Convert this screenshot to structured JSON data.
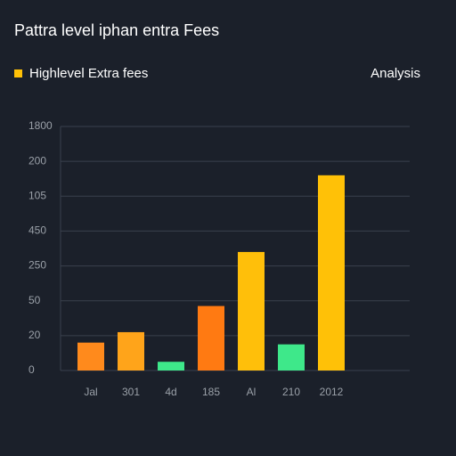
{
  "chart_data": {
    "type": "bar",
    "title": "Pattra level  iphan entra Fees",
    "legend_label": "Highlevel Extra fees",
    "legend_color": "#ffc107",
    "side_label": "Analysis",
    "categories": [
      "Jal",
      "301",
      "4d",
      "185",
      "Al",
      "210",
      "2012"
    ],
    "values": [
      0.8,
      1.1,
      0.25,
      1.85,
      3.4,
      0.75,
      5.6
    ],
    "colors": [
      "#ff8a1c",
      "#ffa41a",
      "#3ee88a",
      "#ff7a12",
      "#ffbf0a",
      "#3ee88a",
      "#ffc107"
    ],
    "ylim": [
      0,
      7
    ],
    "yticks": [
      {
        "value": 0,
        "label": "0"
      },
      {
        "value": 1,
        "label": "20"
      },
      {
        "value": 2,
        "label": "50"
      },
      {
        "value": 3,
        "label": "250"
      },
      {
        "value": 4,
        "label": "450"
      },
      {
        "value": 5,
        "label": "105"
      },
      {
        "value": 6,
        "label": "200"
      },
      {
        "value": 7,
        "label": "1800"
      }
    ],
    "grid": true
  }
}
